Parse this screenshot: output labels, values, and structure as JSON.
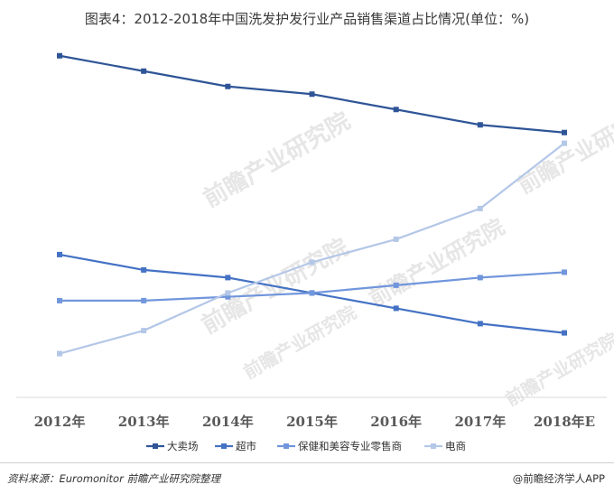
{
  "title": "图表4：2012-2018年中国洗发护发行业产品销售渠道占比情况(单位：%)",
  "footer": {
    "source": "资料来源：Euromonitor 前瞻产业研究院整理",
    "brand": "@前瞻经济学人APP"
  },
  "watermark": {
    "text": "前瞻产业研究院"
  },
  "chart_data": {
    "type": "line",
    "title": "图表4：2012-2018年中国洗发护发行业产品销售渠道占比情况(单位：%)",
    "categories": [
      "2012年",
      "2013年",
      "2014年",
      "2015年",
      "2016年",
      "2017年",
      "2018年E"
    ],
    "ylim": [
      0,
      50
    ],
    "grid": false,
    "legend": "bottom",
    "series": [
      {
        "name": "大卖场",
        "color": "#2f5597",
        "values": [
          44.5,
          42.5,
          40.5,
          39.5,
          37.5,
          35.5,
          34.5
        ]
      },
      {
        "name": "超市",
        "color": "#4472c4",
        "values": [
          18.6,
          16.6,
          15.6,
          13.6,
          11.6,
          9.6,
          8.4
        ]
      },
      {
        "name": "保健和美容专业零售商",
        "color": "#7196dc",
        "values": [
          12.6,
          12.6,
          13.1,
          13.6,
          14.6,
          15.6,
          16.3
        ]
      },
      {
        "name": "电商",
        "color": "#b4c7e7",
        "values": [
          5.7,
          8.7,
          13.6,
          17.6,
          20.6,
          24.6,
          33.1
        ]
      }
    ]
  }
}
